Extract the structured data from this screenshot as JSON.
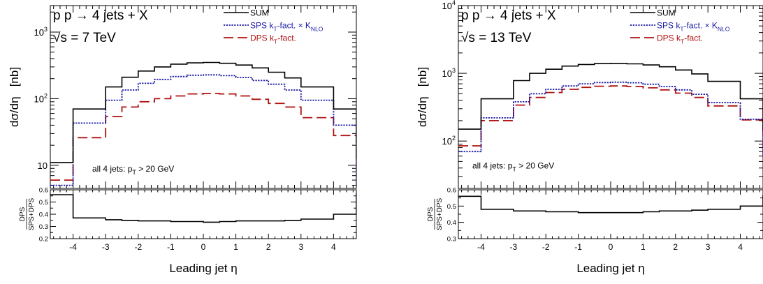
{
  "chart_data": [
    {
      "type": "line",
      "process": "p p → 4 jets + X",
      "energy_label": "√s = 7 TeV",
      "cut_label": "all 4 jets: p_T > 20 GeV",
      "xlabel": "Leading jet η",
      "ylabel": "dσ/dη   [nb]",
      "ratio_ylabel_num": "DPS",
      "ratio_ylabel_den": "SPS+DPS",
      "y_scale": "log",
      "xlim": [
        -4.7,
        4.7
      ],
      "ylim": [
        4.5,
        2500
      ],
      "ratio_ylim": [
        0.2,
        0.6
      ],
      "x_ticks": [
        -4,
        -3,
        -2,
        -1,
        0,
        1,
        2,
        3,
        4
      ],
      "y_tick_labels": [
        {
          "value": 10,
          "label": "10"
        },
        {
          "value": 100,
          "label": "10",
          "exp": "2"
        },
        {
          "value": 1000,
          "label": "10",
          "exp": "3"
        }
      ],
      "ratio_ticks": [
        0.2,
        0.3,
        0.4,
        0.5,
        0.6
      ],
      "legend_placement": "top-right",
      "bin_edges": [
        -4.7,
        -4,
        -3,
        -2.5,
        -2,
        -1.5,
        -1,
        -0.5,
        0,
        0.5,
        1,
        1.5,
        2,
        2.5,
        3,
        4,
        4.7
      ],
      "series": [
        {
          "name": "SUM",
          "color": "#000000",
          "dash": "solid",
          "values": [
            11,
            70,
            150,
            210,
            260,
            300,
            330,
            345,
            350,
            340,
            320,
            290,
            250,
            205,
            150,
            70,
            12
          ]
        },
        {
          "name": "SPS k_T-fact. × K_NLO",
          "color": "#1a1aa6",
          "dash": "dotted",
          "values": [
            5,
            43,
            95,
            135,
            170,
            195,
            215,
            225,
            228,
            222,
            208,
            188,
            165,
            135,
            95,
            40,
            5
          ]
        },
        {
          "name": "DPS k_T-fact.",
          "color": "#b01010",
          "dash": "dashed",
          "values": [
            6,
            26,
            54,
            75,
            90,
            100,
            110,
            118,
            120,
            118,
            110,
            98,
            85,
            75,
            52,
            28,
            7
          ]
        }
      ],
      "ratio_values": [
        0.56,
        0.37,
        0.355,
        0.35,
        0.345,
        0.345,
        0.34,
        0.34,
        0.335,
        0.34,
        0.345,
        0.345,
        0.345,
        0.35,
        0.36,
        0.4,
        0.57
      ]
    },
    {
      "type": "line",
      "process": "p p → 4 jets + X",
      "energy_label": "√s = 13 TeV",
      "cut_label": "all 4 jets: p_T > 20 GeV",
      "xlabel": "Leading jet η",
      "ylabel": "dσ/dη   [nb]",
      "ratio_ylabel_num": "DPS",
      "ratio_ylabel_den": "SPS+DPS",
      "y_scale": "log",
      "xlim": [
        -4.7,
        4.7
      ],
      "ylim": [
        20,
        10000
      ],
      "ratio_ylim": [
        0.3,
        0.6
      ],
      "x_ticks": [
        -4,
        -3,
        -2,
        -1,
        0,
        1,
        2,
        3,
        4
      ],
      "y_tick_labels": [
        {
          "value": 100,
          "label": "10",
          "exp": "2"
        },
        {
          "value": 1000,
          "label": "10",
          "exp": "3"
        },
        {
          "value": 10000,
          "label": "10",
          "exp": "4"
        }
      ],
      "ratio_ticks": [
        0.3,
        0.4,
        0.5,
        0.6
      ],
      "legend_placement": "top-right",
      "bin_edges": [
        -4.7,
        -4,
        -3,
        -2.5,
        -2,
        -1.5,
        -1,
        -0.5,
        0,
        0.5,
        1,
        1.5,
        2,
        2.5,
        3,
        4,
        4.7
      ],
      "series": [
        {
          "name": "SUM",
          "color": "#000000",
          "dash": "solid",
          "values": [
            150,
            420,
            780,
            1000,
            1150,
            1280,
            1350,
            1390,
            1400,
            1380,
            1330,
            1250,
            1120,
            980,
            760,
            420,
            145
          ]
        },
        {
          "name": "SPS k_T-fact. × K_NLO",
          "color": "#1a1aa6",
          "dash": "dotted",
          "values": [
            70,
            220,
            380,
            500,
            580,
            650,
            700,
            730,
            740,
            725,
            690,
            640,
            570,
            490,
            370,
            210,
            62
          ]
        },
        {
          "name": "DPS k_T-fact.",
          "color": "#b01010",
          "dash": "dashed",
          "values": [
            85,
            200,
            340,
            440,
            520,
            580,
            620,
            645,
            650,
            640,
            610,
            570,
            510,
            440,
            330,
            205,
            82
          ]
        }
      ],
      "ratio_values": [
        0.56,
        0.48,
        0.47,
        0.47,
        0.465,
        0.465,
        0.46,
        0.46,
        0.46,
        0.46,
        0.465,
        0.47,
        0.47,
        0.475,
        0.48,
        0.5,
        0.57
      ]
    }
  ]
}
